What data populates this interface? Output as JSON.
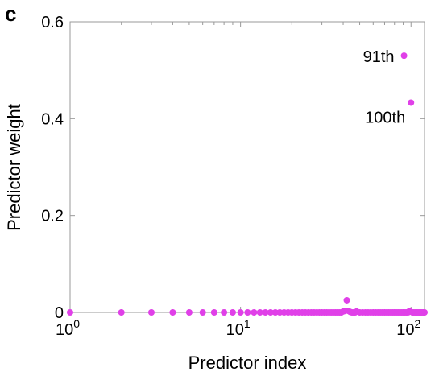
{
  "panel_label": "c",
  "chart_data": {
    "type": "scatter",
    "title": "",
    "xlabel": "Predictor index",
    "ylabel": "Predictor weight",
    "xscale": "log",
    "xlim": [
      1,
      120
    ],
    "ylim": [
      0,
      0.6
    ],
    "x_ticks": [
      {
        "value": 1,
        "base": "10",
        "exp": "0"
      },
      {
        "value": 10,
        "base": "10",
        "exp": "1"
      },
      {
        "value": 100,
        "base": "10",
        "exp": "2"
      }
    ],
    "y_ticks": [
      {
        "value": 0,
        "label": "0"
      },
      {
        "value": 0.2,
        "label": "0.2"
      },
      {
        "value": 0.4,
        "label": "0.4"
      },
      {
        "value": 0.6,
        "label": "0.6"
      }
    ],
    "grid": false,
    "marker_color": "#e040e8",
    "points": [
      {
        "x": 1,
        "y": 0
      },
      {
        "x": 2,
        "y": 0
      },
      {
        "x": 3,
        "y": 0
      },
      {
        "x": 4,
        "y": 0
      },
      {
        "x": 5,
        "y": 0
      },
      {
        "x": 6,
        "y": 0
      },
      {
        "x": 7,
        "y": 0
      },
      {
        "x": 8,
        "y": 0
      },
      {
        "x": 9,
        "y": 0
      },
      {
        "x": 10,
        "y": 0
      },
      {
        "x": 11,
        "y": 0
      },
      {
        "x": 12,
        "y": 0
      },
      {
        "x": 13,
        "y": 0
      },
      {
        "x": 14,
        "y": 0
      },
      {
        "x": 15,
        "y": 0
      },
      {
        "x": 16,
        "y": 0
      },
      {
        "x": 17,
        "y": 0
      },
      {
        "x": 18,
        "y": 0
      },
      {
        "x": 19,
        "y": 0
      },
      {
        "x": 20,
        "y": 0
      },
      {
        "x": 21,
        "y": 0
      },
      {
        "x": 22,
        "y": 0
      },
      {
        "x": 23,
        "y": 0
      },
      {
        "x": 24,
        "y": 0
      },
      {
        "x": 25,
        "y": 0
      },
      {
        "x": 26,
        "y": 0
      },
      {
        "x": 27,
        "y": 0
      },
      {
        "x": 28,
        "y": 0
      },
      {
        "x": 29,
        "y": 0
      },
      {
        "x": 30,
        "y": 0
      },
      {
        "x": 31,
        "y": 0
      },
      {
        "x": 32,
        "y": 0
      },
      {
        "x": 33,
        "y": 0
      },
      {
        "x": 34,
        "y": 0
      },
      {
        "x": 35,
        "y": 0
      },
      {
        "x": 36,
        "y": 0
      },
      {
        "x": 37,
        "y": 0
      },
      {
        "x": 38,
        "y": 0
      },
      {
        "x": 39,
        "y": 0
      },
      {
        "x": 40,
        "y": 0.002
      },
      {
        "x": 41,
        "y": 0.003
      },
      {
        "x": 42,
        "y": 0.025
      },
      {
        "x": 43,
        "y": 0.003
      },
      {
        "x": 44,
        "y": 0.001
      },
      {
        "x": 45,
        "y": 0
      },
      {
        "x": 46,
        "y": 0
      },
      {
        "x": 47,
        "y": 0
      },
      {
        "x": 48,
        "y": 0.002
      },
      {
        "x": 50,
        "y": 0
      },
      {
        "x": 52,
        "y": 0
      },
      {
        "x": 54,
        "y": 0
      },
      {
        "x": 56,
        "y": 0
      },
      {
        "x": 58,
        "y": 0
      },
      {
        "x": 60,
        "y": 0
      },
      {
        "x": 62,
        "y": 0
      },
      {
        "x": 64,
        "y": 0
      },
      {
        "x": 66,
        "y": 0
      },
      {
        "x": 68,
        "y": 0
      },
      {
        "x": 70,
        "y": 0
      },
      {
        "x": 72,
        "y": 0
      },
      {
        "x": 74,
        "y": 0
      },
      {
        "x": 76,
        "y": 0
      },
      {
        "x": 78,
        "y": 0
      },
      {
        "x": 80,
        "y": 0
      },
      {
        "x": 82,
        "y": 0
      },
      {
        "x": 84,
        "y": 0
      },
      {
        "x": 86,
        "y": 0
      },
      {
        "x": 88,
        "y": 0
      },
      {
        "x": 90,
        "y": 0
      },
      {
        "x": 91,
        "y": 0.53
      },
      {
        "x": 92,
        "y": 0
      },
      {
        "x": 94,
        "y": 0
      },
      {
        "x": 96,
        "y": 0
      },
      {
        "x": 98,
        "y": 0.003
      },
      {
        "x": 100,
        "y": 0.433
      },
      {
        "x": 102,
        "y": 0
      },
      {
        "x": 104,
        "y": 0
      },
      {
        "x": 106,
        "y": 0
      },
      {
        "x": 108,
        "y": 0
      },
      {
        "x": 110,
        "y": 0
      },
      {
        "x": 112,
        "y": 0
      },
      {
        "x": 114,
        "y": 0
      },
      {
        "x": 116,
        "y": 0
      },
      {
        "x": 118,
        "y": 0
      },
      {
        "x": 120,
        "y": 0
      }
    ],
    "annotations": [
      {
        "text": "91th",
        "x": 91,
        "y": 0.53,
        "side": "left"
      },
      {
        "text": "100th",
        "x": 100,
        "y": 0.433,
        "side": "below-left"
      }
    ]
  }
}
